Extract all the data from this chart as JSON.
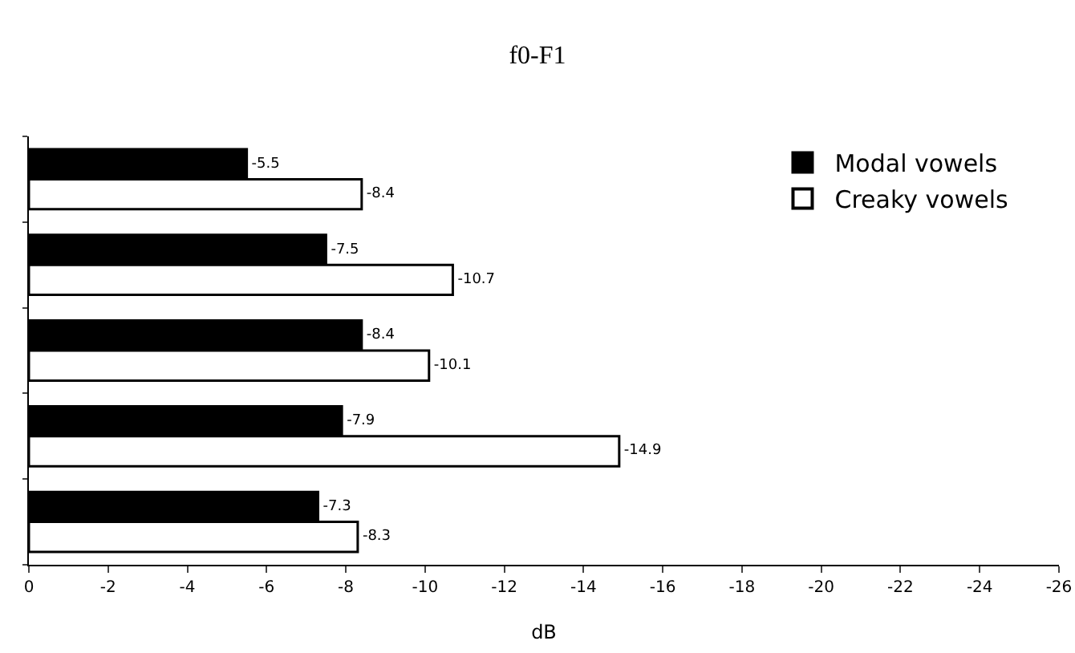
{
  "chart_data": {
    "type": "bar",
    "orientation": "horizontal",
    "title": "f0-F1",
    "xlabel": "dB",
    "categories": [
      null,
      null,
      null,
      null,
      null
    ],
    "series": [
      {
        "name": "Modal vowels",
        "color": "#000000",
        "values": [
          -5.5,
          -7.5,
          -8.4,
          -7.9,
          -7.3
        ]
      },
      {
        "name": "Creaky vowels",
        "color": "#ffffff",
        "values": [
          -8.4,
          -10.7,
          -10.1,
          -14.9,
          -8.3
        ]
      }
    ],
    "xlim": [
      0,
      -26
    ],
    "xticks": [
      0,
      -2,
      -4,
      -6,
      -8,
      -10,
      -12,
      -14,
      -16,
      -18,
      -20,
      -22,
      -24,
      -26
    ],
    "data_labels": true,
    "legend": "top right",
    "grid": false,
    "tick_labels": "x"
  }
}
